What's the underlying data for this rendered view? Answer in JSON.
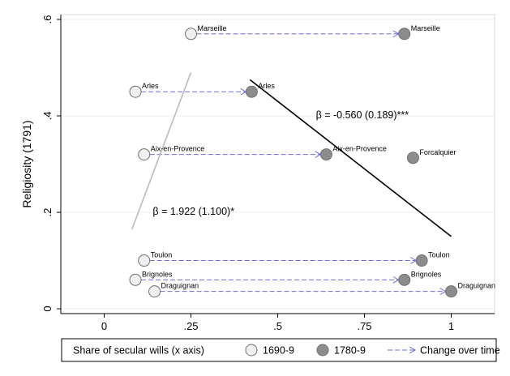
{
  "chart_data": {
    "type": "scatter",
    "ylabel": "Religiosity (1791)",
    "xlim": [
      -0.125,
      1.125
    ],
    "ylim": [
      -0.01,
      0.61
    ],
    "x_ticks": [
      {
        "value": 0,
        "label": "0"
      },
      {
        "value": 0.25,
        "label": ".25"
      },
      {
        "value": 0.5,
        "label": ".5"
      },
      {
        "value": 0.75,
        "label": ".75"
      },
      {
        "value": 1,
        "label": "1"
      }
    ],
    "y_ticks": [
      {
        "value": 0,
        "label": "0"
      },
      {
        "value": 0.2,
        "label": ".2"
      },
      {
        "value": 0.4,
        "label": ".4"
      },
      {
        "value": 0.6,
        "label": ".6"
      }
    ],
    "grid": true,
    "series": [
      {
        "name": "1690-9",
        "color": "#f0f0f0",
        "points": [
          {
            "label": "Marseille",
            "x": 0.25,
            "y": 0.57
          },
          {
            "label": "Arles",
            "x": 0.09,
            "y": 0.45
          },
          {
            "label": "Aix-en-Provence",
            "x": 0.115,
            "y": 0.32
          },
          {
            "label": "Toulon",
            "x": 0.115,
            "y": 0.1
          },
          {
            "label": "Brignoles",
            "x": 0.09,
            "y": 0.06
          },
          {
            "label": "Draguignan",
            "x": 0.145,
            "y": 0.036
          }
        ]
      },
      {
        "name": "1780-9",
        "color": "#8c8c8c",
        "points": [
          {
            "label": "Marseille",
            "x": 0.865,
            "y": 0.57
          },
          {
            "label": "Arles",
            "x": 0.425,
            "y": 0.45
          },
          {
            "label": "Aix-en-Provence",
            "x": 0.64,
            "y": 0.32
          },
          {
            "label": "Forcalquier",
            "x": 0.89,
            "y": 0.313
          },
          {
            "label": "Toulon",
            "x": 0.915,
            "y": 0.1
          },
          {
            "label": "Brignoles",
            "x": 0.865,
            "y": 0.06
          },
          {
            "label": "Draguignan",
            "x": 1.0,
            "y": 0.036
          }
        ]
      }
    ],
    "change_arrows": [
      {
        "from": [
          0.25,
          0.57
        ],
        "to": [
          0.865,
          0.57
        ]
      },
      {
        "from": [
          0.09,
          0.45
        ],
        "to": [
          0.425,
          0.45
        ]
      },
      {
        "from": [
          0.115,
          0.32
        ],
        "to": [
          0.64,
          0.32
        ]
      },
      {
        "from": [
          0.115,
          0.1
        ],
        "to": [
          0.915,
          0.1
        ]
      },
      {
        "from": [
          0.09,
          0.06
        ],
        "to": [
          0.865,
          0.06
        ]
      },
      {
        "from": [
          0.145,
          0.036
        ],
        "to": [
          1.0,
          0.036
        ]
      }
    ],
    "fit_lines": [
      {
        "name": "1690-9 fit",
        "color": "#bbbbbb",
        "from": [
          0.08,
          0.165
        ],
        "to": [
          0.25,
          0.49
        ]
      },
      {
        "name": "1780-9 fit",
        "color": "#000000",
        "from": [
          0.42,
          0.475
        ],
        "to": [
          1.0,
          0.15
        ]
      }
    ],
    "annotations": [
      {
        "text": "β = 1.922 (1.100)*",
        "x": 0.14,
        "y": 0.195
      },
      {
        "text": "β = -0.560 (0.189)***",
        "x": 0.61,
        "y": 0.395
      }
    ],
    "legend": {
      "placement": "bottom",
      "title": "Share of secular wills (x axis)",
      "items": [
        {
          "label": "1690-9",
          "kind": "marker",
          "color": "#f0f0f0"
        },
        {
          "label": "1780-9",
          "kind": "marker",
          "color": "#8c8c8c"
        },
        {
          "label": "Change over time",
          "kind": "arrow",
          "color": "#6d6de0"
        }
      ]
    },
    "colors": {
      "arrow": "#6d6de0",
      "grid": "#eeeeee",
      "marker_stroke": "#707070"
    }
  }
}
